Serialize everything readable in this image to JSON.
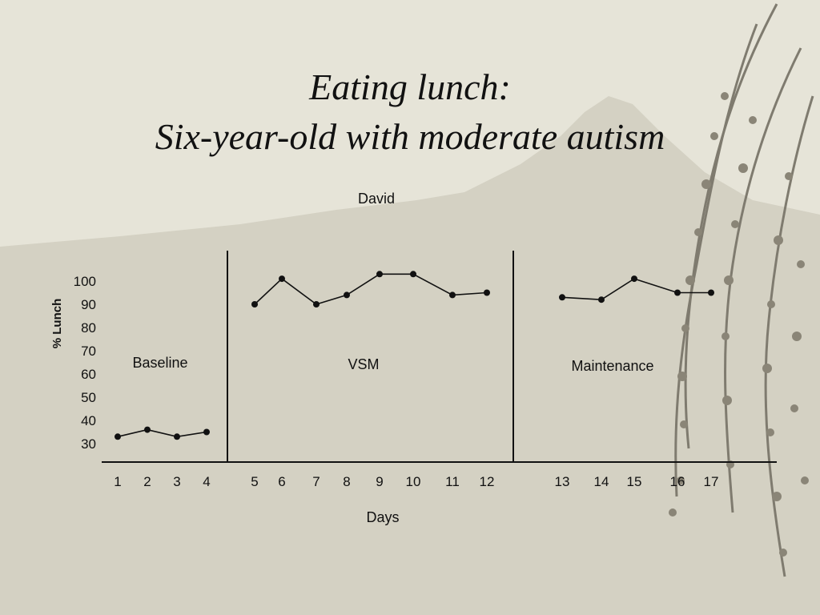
{
  "slide": {
    "title_line1": "Eating lunch:",
    "title_line2": "Six-year-old with moderate autism"
  },
  "colors": {
    "background": "#e6e4d8",
    "mountain": "#d2cfc1",
    "line": "#111111"
  },
  "chart_data": {
    "type": "line",
    "title": "David",
    "xlabel": "Days",
    "ylabel": "% Lunch",
    "yticks": [
      30,
      40,
      50,
      60,
      70,
      80,
      90,
      100
    ],
    "ylim": [
      25,
      105
    ],
    "grid": false,
    "phase_lines_after_day": [
      4,
      12
    ],
    "phases": [
      {
        "label": "Baseline",
        "days": [
          1,
          2,
          3,
          4
        ],
        "values": [
          33,
          36,
          33,
          35
        ]
      },
      {
        "label": "VSM",
        "days": [
          5,
          6,
          7,
          8,
          9,
          10,
          11,
          12
        ],
        "values": [
          90,
          101,
          90,
          94,
          103,
          103,
          94,
          95
        ]
      },
      {
        "label": "Maintenance",
        "days": [
          13,
          14,
          15,
          16,
          17
        ],
        "values": [
          93,
          92,
          101,
          95,
          95
        ]
      }
    ]
  }
}
